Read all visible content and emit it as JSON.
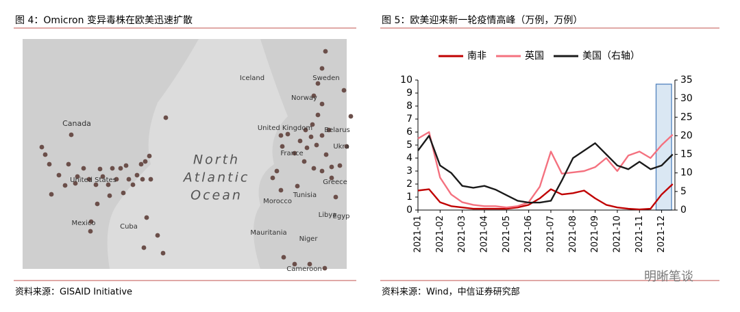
{
  "left_figure": {
    "title": "图 4：Omicron 变异毒株在欧美迅速扩散",
    "map_labels": [
      "Canada",
      "United States",
      "Mexico",
      "Cuba",
      "Iceland",
      "Sweden",
      "Norway",
      "United Kingdom",
      "Belarus",
      "Ukra",
      "France",
      "Greece",
      "Morocco",
      "Tunisia",
      "Libya",
      "Egyp",
      "Mauritania",
      "Niger",
      "Cameroon",
      "North",
      "Atlantic",
      "Ocean"
    ],
    "source": "资料来源：GISAID Initiative"
  },
  "right_figure": {
    "title": "图 5：欧美迎来新一轮疫情高峰（万例，万例）",
    "source": "资料来源：Wind，中信证券研究部"
  },
  "watermark": "明晰笔谈",
  "chart_data": {
    "type": "line",
    "x": [
      1,
      1.5,
      2,
      2.5,
      3,
      3.5,
      4,
      4.5,
      5,
      5.5,
      6,
      6.5,
      7,
      7.5,
      8,
      8.5,
      9,
      9.5,
      10,
      10.5,
      11,
      11.5,
      12,
      12.5
    ],
    "xlim": [
      1,
      12.6
    ],
    "xticks": [
      {
        "value": 1,
        "label": "2021-01"
      },
      {
        "value": 2,
        "label": "2021-02"
      },
      {
        "value": 3,
        "label": "2021-03"
      },
      {
        "value": 4,
        "label": "2021-04"
      },
      {
        "value": 5,
        "label": "2021-05"
      },
      {
        "value": 6,
        "label": "2021-06"
      },
      {
        "value": 7,
        "label": "2021-07"
      },
      {
        "value": 8,
        "label": "2021-08"
      },
      {
        "value": 9,
        "label": "2021-09"
      },
      {
        "value": 10,
        "label": "2021-10"
      },
      {
        "value": 11,
        "label": "2021-11"
      },
      {
        "value": 12,
        "label": "2021-12"
      }
    ],
    "ylim": [
      0,
      10
    ],
    "yticks": [
      0,
      1,
      2,
      3,
      4,
      5,
      6,
      7,
      8,
      9,
      10
    ],
    "y2lim": [
      0,
      35
    ],
    "y2ticks": [
      0,
      5,
      10,
      15,
      20,
      25,
      30,
      35
    ],
    "highlight_x": [
      11.75,
      12.45
    ],
    "series": [
      {
        "name": "南非",
        "color": "#c00000",
        "values": [
          1.5,
          1.6,
          0.6,
          0.3,
          0.2,
          0.1,
          0.1,
          0.1,
          0.1,
          0.2,
          0.4,
          0.9,
          1.6,
          1.2,
          1.3,
          1.5,
          0.9,
          0.4,
          0.2,
          0.1,
          0.05,
          0.1,
          1.2,
          2.0
        ]
      },
      {
        "name": "英国",
        "color": "#f4717f",
        "values": [
          5.5,
          6.0,
          2.5,
          1.2,
          0.6,
          0.4,
          0.3,
          0.3,
          0.2,
          0.3,
          0.6,
          1.8,
          4.5,
          2.8,
          2.9,
          3.0,
          3.3,
          4.0,
          3.0,
          4.2,
          4.5,
          4.0,
          5.0,
          5.8
        ]
      },
      {
        "name": "美国（右轴）",
        "color": "#1a1a1a",
        "axis": "y2",
        "values": [
          16,
          20,
          12,
          10,
          6.5,
          6,
          6.5,
          5.5,
          4,
          2.5,
          2,
          2,
          2.5,
          8,
          14,
          16,
          18,
          15,
          12,
          11,
          13,
          11,
          12,
          15
        ]
      }
    ]
  }
}
